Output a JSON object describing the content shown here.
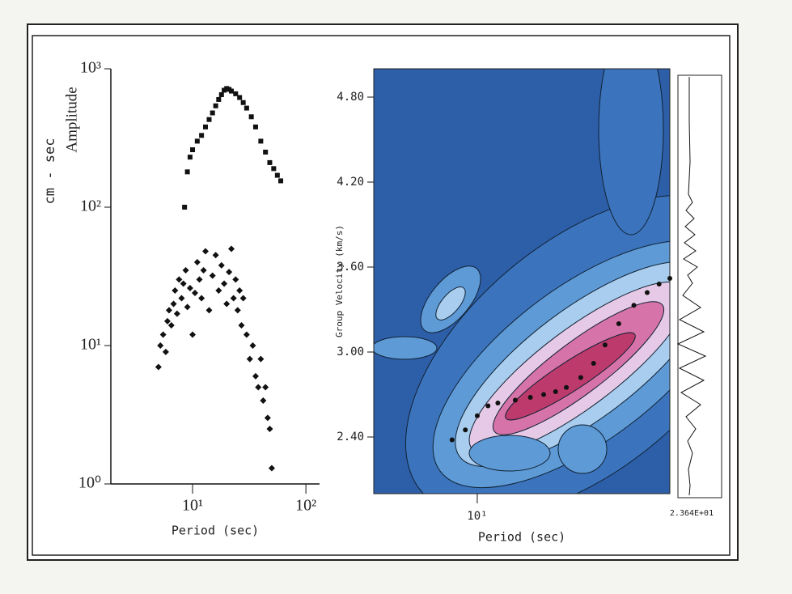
{
  "chart_data": [
    {
      "type": "scatter",
      "ylabel": "cm - sec",
      "annotation": "Amplitude",
      "xlabel": "Period (sec)",
      "xscale": "log",
      "yscale": "log",
      "xlim": [
        1.9,
        132
      ],
      "xticks": [
        {
          "value": 10,
          "label": "10¹"
        },
        {
          "value": 100,
          "label": "10²"
        }
      ],
      "ylim": [
        1,
        1000
      ],
      "yticks": [
        {
          "value": 1,
          "label": "10⁰"
        },
        {
          "value": 10,
          "label": "10¹"
        },
        {
          "value": 100,
          "label": "10²"
        },
        {
          "value": 1000,
          "label": "10³"
        }
      ],
      "series": [
        {
          "color": "#111111",
          "marker": "square",
          "x": [
            8.5,
            9,
            9.5,
            10,
            11,
            12,
            13,
            14,
            15,
            16,
            17,
            18,
            19,
            20,
            21,
            22,
            24,
            26,
            28,
            30,
            33,
            36,
            40,
            44,
            48,
            52,
            56,
            60
          ],
          "values": [
            100,
            180,
            230,
            260,
            300,
            330,
            380,
            430,
            480,
            540,
            600,
            650,
            700,
            720,
            710,
            690,
            660,
            620,
            570,
            520,
            450,
            380,
            300,
            250,
            210,
            190,
            170,
            155
          ]
        },
        {
          "color": "#111111",
          "marker": "diamond",
          "x": [
            5,
            5.2,
            5.5,
            5.8,
            6,
            6.2,
            6.5,
            6.8,
            7,
            7.3,
            7.6,
            8,
            8.3,
            8.7,
            9,
            9.5,
            10,
            10.5,
            11,
            11.5,
            12,
            12.5,
            13,
            14,
            15,
            16,
            17,
            18,
            19,
            20,
            21,
            22,
            23,
            24,
            25,
            26,
            27,
            28,
            30,
            32,
            34,
            36,
            38,
            40,
            42,
            44,
            46,
            48,
            50
          ],
          "values": [
            7,
            10,
            12,
            9,
            15,
            18,
            14,
            20,
            25,
            17,
            30,
            22,
            28,
            35,
            19,
            26,
            12,
            24,
            40,
            30,
            22,
            35,
            48,
            18,
            32,
            45,
            25,
            38,
            28,
            20,
            34,
            50,
            22,
            30,
            18,
            25,
            14,
            22,
            12,
            8,
            10,
            6,
            5,
            8,
            4,
            5,
            3,
            2.5,
            1.3
          ]
        }
      ]
    },
    {
      "type": "contour",
      "ylabel": "Group Velocity (km/s)",
      "xlabel": "Period (sec)",
      "annotation": "2.364E+01",
      "xscale": "log",
      "xlim": [
        4,
        55
      ],
      "xticks": [
        {
          "value": 10,
          "label": "10¹"
        }
      ],
      "ylim": [
        2.0,
        5.0
      ],
      "yticks": [
        {
          "value": 2.4,
          "label": "2.40"
        },
        {
          "value": 3.0,
          "label": "3.00"
        },
        {
          "value": 3.6,
          "label": "3.60"
        },
        {
          "value": 4.2,
          "label": "4.20"
        },
        {
          "value": 4.8,
          "label": "4.80"
        }
      ],
      "series": [
        {
          "color": "#111111",
          "marker": "dot",
          "x": [
            8,
            9,
            10,
            11,
            12,
            14,
            16,
            18,
            20,
            22,
            25,
            28,
            31,
            35,
            40,
            45,
            50,
            55
          ],
          "values": [
            2.38,
            2.45,
            2.55,
            2.62,
            2.64,
            2.66,
            2.68,
            2.7,
            2.72,
            2.75,
            2.82,
            2.92,
            3.05,
            3.2,
            3.33,
            3.42,
            3.48,
            3.52
          ]
        }
      ]
    }
  ]
}
